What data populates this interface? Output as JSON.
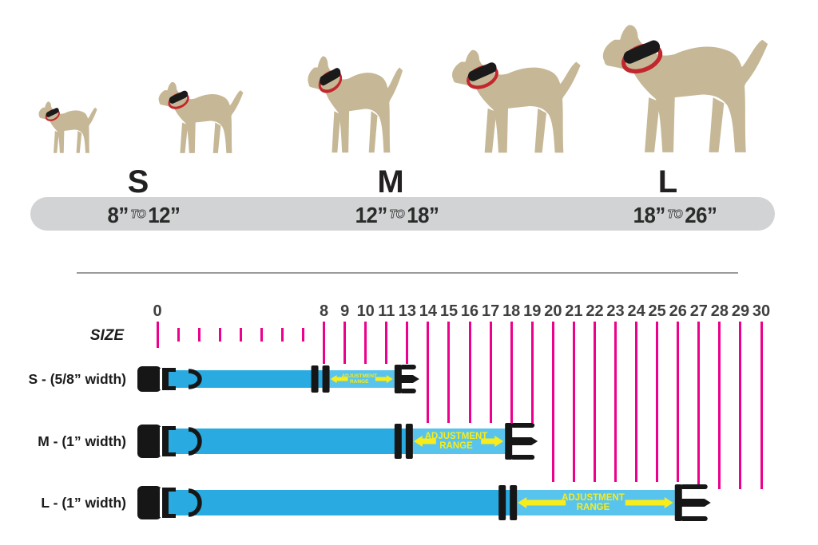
{
  "colors": {
    "dog_tan": "#c6b896",
    "collar_band_black": "#1a1a1a",
    "collar_loop_red": "#c1272d",
    "bar_gray": "#d1d3d4",
    "tick_pink": "#ec008c",
    "strap_blue": "#29abe2",
    "adjust_zone_blue": "#58c4ee",
    "hardware_black": "#161616",
    "arrow_yellow": "#f8ec1a",
    "text_dark": "#232021",
    "divider_gray": "#9b9b9b"
  },
  "top_section": {
    "dogs": [
      {
        "name": "dog-silhouette-xsmall"
      },
      {
        "name": "dog-silhouette-small"
      },
      {
        "name": "dog-silhouette-medium"
      },
      {
        "name": "dog-silhouette-large"
      },
      {
        "name": "dog-silhouette-xlarge"
      }
    ],
    "size_letters": [
      "S",
      "M",
      "L"
    ],
    "size_ranges": [
      {
        "from": "8”",
        "to_word": "TO",
        "to": "12”"
      },
      {
        "from": "12”",
        "to_word": "TO",
        "to": "18”"
      },
      {
        "from": "18”",
        "to_word": "TO",
        "to": "26”"
      }
    ]
  },
  "ruler": {
    "axis_label": "SIZE",
    "tick_labels": [
      "0",
      "",
      "",
      "",
      "",
      "",
      "",
      "",
      "8",
      "9",
      "10",
      "11",
      "13",
      "14",
      "15",
      "16",
      "17",
      "18",
      "19",
      "20",
      "21",
      "22",
      "23",
      "24",
      "25",
      "26",
      "27",
      "28",
      "29",
      "30"
    ]
  },
  "collars": [
    {
      "size": "S",
      "label": "S - (5/8” width)",
      "adjustment_line1": "ADJUSTMENT",
      "adjustment_line2": "RANGE"
    },
    {
      "size": "M",
      "label": "M - (1” width)",
      "adjustment_line1": "ADJUSTMENT",
      "adjustment_line2": "RANGE"
    },
    {
      "size": "L",
      "label": "L - (1” width)",
      "adjustment_line1": "ADJUSTMENT",
      "adjustment_line2": "RANGE"
    }
  ]
}
